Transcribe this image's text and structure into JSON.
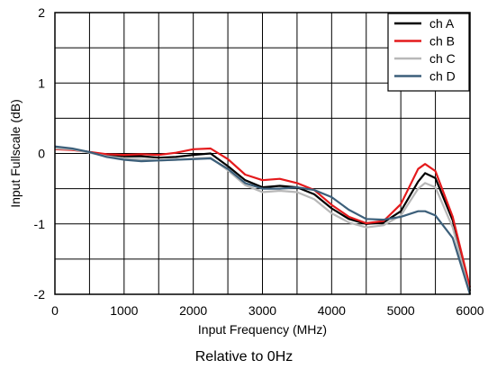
{
  "chart_data": {
    "type": "line",
    "xlabel": "Input Frequency (MHz)",
    "ylabel": "Input Fullscale (dB)",
    "xlim": [
      0,
      6000
    ],
    "ylim": [
      -2,
      2
    ],
    "x_ticks": [
      "0",
      "1000",
      "2000",
      "3000",
      "4000",
      "5000",
      "6000"
    ],
    "y_ticks": [
      "2",
      "1",
      "0",
      "-1",
      "-2"
    ],
    "grid": true,
    "legend_position": "top-right",
    "series": [
      {
        "name": "ch A",
        "color": "#000000",
        "x": [
          0,
          250,
          500,
          750,
          1000,
          1250,
          1500,
          1750,
          2000,
          2250,
          2500,
          2750,
          3000,
          3250,
          3500,
          3750,
          4000,
          4250,
          4500,
          4750,
          5000,
          5250,
          5350,
          5500,
          5750,
          6000
        ],
        "y": [
          0.08,
          0.06,
          0.02,
          -0.02,
          -0.04,
          -0.04,
          -0.06,
          -0.05,
          -0.02,
          0.0,
          -0.18,
          -0.38,
          -0.48,
          -0.46,
          -0.48,
          -0.58,
          -0.78,
          -0.93,
          -1.0,
          -0.98,
          -0.82,
          -0.4,
          -0.28,
          -0.35,
          -0.95,
          -1.95
        ]
      },
      {
        "name": "ch B",
        "color": "#e41a1c",
        "x": [
          0,
          250,
          500,
          750,
          1000,
          1250,
          1500,
          1750,
          2000,
          2250,
          2500,
          2750,
          3000,
          3250,
          3500,
          3750,
          4000,
          4250,
          4500,
          4750,
          5000,
          5250,
          5350,
          5500,
          5750,
          6000
        ],
        "y": [
          0.06,
          0.05,
          0.02,
          -0.01,
          -0.02,
          -0.01,
          -0.02,
          0.01,
          0.06,
          0.07,
          -0.08,
          -0.3,
          -0.38,
          -0.36,
          -0.42,
          -0.52,
          -0.73,
          -0.9,
          -0.99,
          -0.96,
          -0.72,
          -0.22,
          -0.15,
          -0.25,
          -0.9,
          -1.9
        ]
      },
      {
        "name": "ch C",
        "color": "#b8b8b8",
        "x": [
          0,
          250,
          500,
          750,
          1000,
          1250,
          1500,
          1750,
          2000,
          2250,
          2500,
          2750,
          3000,
          3250,
          3500,
          3750,
          4000,
          4250,
          4500,
          4750,
          5000,
          5250,
          5350,
          5500,
          5750,
          6000
        ],
        "y": [
          0.07,
          0.06,
          0.01,
          -0.04,
          -0.07,
          -0.08,
          -0.1,
          -0.09,
          -0.07,
          -0.06,
          -0.24,
          -0.45,
          -0.55,
          -0.53,
          -0.55,
          -0.65,
          -0.85,
          -0.98,
          -1.05,
          -1.02,
          -0.88,
          -0.5,
          -0.42,
          -0.48,
          -1.05,
          -2.0
        ]
      },
      {
        "name": "ch D",
        "color": "#3c5f7a",
        "x": [
          0,
          250,
          500,
          750,
          1000,
          1250,
          1500,
          1750,
          2000,
          2250,
          2500,
          2750,
          3000,
          3250,
          3500,
          3750,
          4000,
          4250,
          4500,
          4750,
          5000,
          5250,
          5350,
          5500,
          5750,
          6000
        ],
        "y": [
          0.1,
          0.07,
          0.02,
          -0.05,
          -0.09,
          -0.11,
          -0.1,
          -0.09,
          -0.08,
          -0.07,
          -0.22,
          -0.42,
          -0.5,
          -0.5,
          -0.48,
          -0.52,
          -0.62,
          -0.8,
          -0.93,
          -0.94,
          -0.9,
          -0.82,
          -0.82,
          -0.88,
          -1.2,
          -2.0
        ]
      }
    ]
  },
  "caption": "Relative to 0Hz"
}
